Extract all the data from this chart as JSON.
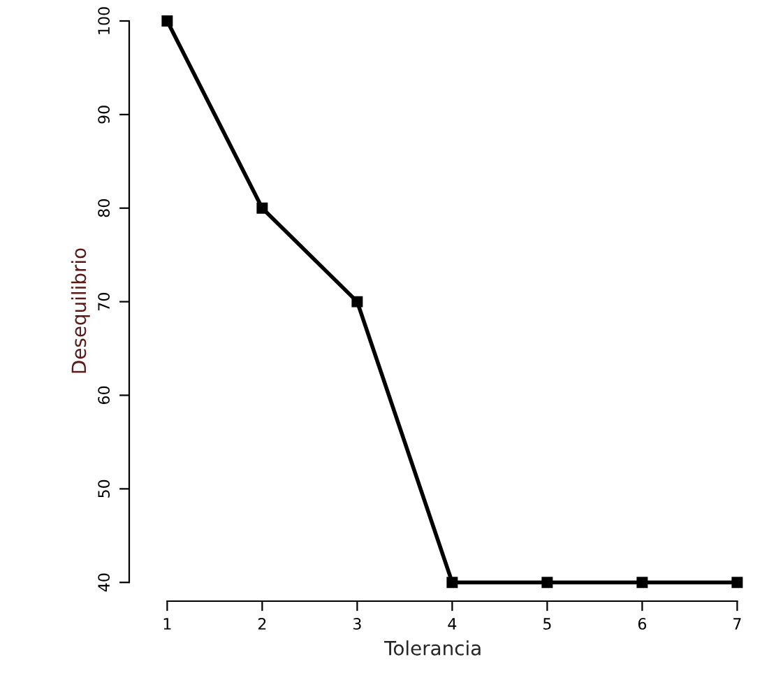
{
  "chart_data": {
    "type": "line",
    "xlabel": "Tolerancia",
    "ylabel": "Desequilibrio",
    "x": [
      1,
      2,
      3,
      4,
      5,
      6,
      7
    ],
    "series": [
      {
        "color": "#000000",
        "values": [
          100,
          80,
          70,
          40,
          40,
          40,
          40
        ]
      }
    ],
    "xlim": [
      0.6,
      7
    ],
    "ylim": [
      38,
      100
    ],
    "xticks": [
      1,
      2,
      3,
      4,
      5,
      6,
      7
    ],
    "yticks": [
      40,
      50,
      60,
      70,
      80,
      90,
      100
    ],
    "marker": "square",
    "line_style": "solid",
    "grid": false
  }
}
